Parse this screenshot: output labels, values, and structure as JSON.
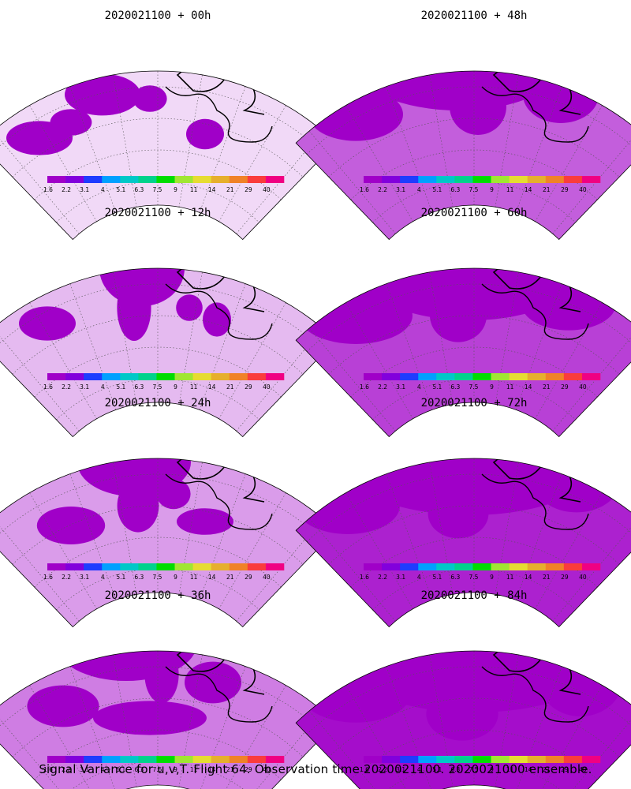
{
  "caption": "Signal Variance for u,v,T. Flight 64. Observation time 2020021100. 2020021000 ensemble.",
  "legend": {
    "labels": [
      "1.6",
      "2.2",
      "3.1",
      "4",
      "5.1",
      "6.3",
      "7.5",
      "9",
      "11",
      "14",
      "21",
      "29",
      "40"
    ],
    "colors": [
      "#a000c8",
      "#8200dc",
      "#1e3cff",
      "#00a0ff",
      "#00c8c8",
      "#00d28c",
      "#00dc00",
      "#a0e632",
      "#e6dc32",
      "#e6af2d",
      "#f08228",
      "#fa3c3c",
      "#f00082"
    ]
  },
  "panels": [
    {
      "title": "2020021100 + 00h",
      "lead_hours": 0
    },
    {
      "title": "2020021100 + 48h",
      "lead_hours": 48
    },
    {
      "title": "2020021100 + 12h",
      "lead_hours": 12
    },
    {
      "title": "2020021100 + 60h",
      "lead_hours": 60
    },
    {
      "title": "2020021100 + 24h",
      "lead_hours": 24
    },
    {
      "title": "2020021100 + 72h",
      "lead_hours": 72
    },
    {
      "title": "2020021100 + 36h",
      "lead_hours": 36
    },
    {
      "title": "2020021100 + 84h",
      "lead_hours": 84
    }
  ]
}
